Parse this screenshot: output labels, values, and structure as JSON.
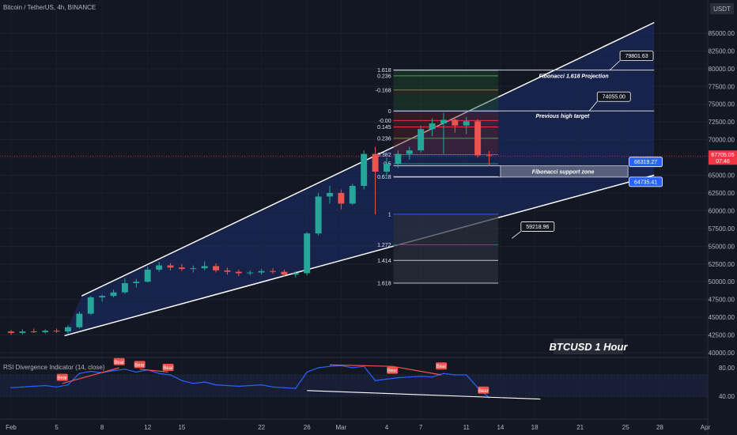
{
  "header": {
    "symbol_title": "Bitcoin / TetherUS, 4h, BINANCE",
    "currency": "USDT"
  },
  "colors": {
    "background": "#131722",
    "bull": "#26a69a",
    "bear": "#ef5350",
    "channel_fill": "#1c2e6b",
    "rsi_line": "#2962ff",
    "current_price": "#f23645",
    "callout_blue": "#2962ff"
  },
  "chart_data": [
    {
      "type": "candlestick",
      "title": "Bitcoin / TetherUS, 4h, BINANCE",
      "interval": "4h",
      "ylim": [
        40000,
        87000
      ],
      "y_ticks": [
        40000,
        42500,
        45000,
        47500,
        50000,
        52500,
        55000,
        57500,
        60000,
        62500,
        65000,
        67500,
        70000,
        72500,
        75000,
        77500,
        80000,
        82500,
        85000
      ],
      "y_tick_labels": [
        "40000.00",
        "42500.00",
        "45000.00",
        "47500.00",
        "50000.00",
        "52500.00",
        "55000.00",
        "57500.00",
        "60000.00",
        "62500.00",
        "65000.00",
        "67500.00",
        "70000.00",
        "72500.00",
        "75000.00",
        "77500.00",
        "80000.00",
        "82500.00",
        "85000.00"
      ],
      "x_range_days": [
        0,
        61
      ],
      "x_ticks": [
        0,
        4,
        8,
        12,
        15,
        19,
        22,
        26,
        29,
        33,
        36,
        40,
        43,
        46,
        50,
        54,
        57,
        61
      ],
      "x_tick_labels": [
        "Feb",
        "5",
        "8",
        "12",
        "15",
        "",
        "22",
        "26",
        "Mar",
        "4",
        "7",
        "11",
        "14",
        "18",
        "21",
        "25",
        "28",
        "Apr"
      ],
      "current_price": "67705.05",
      "current_countdown": "07:46",
      "fib_levels": [
        {
          "label": "1.618",
          "price": 79800
        },
        {
          "label": "0.236",
          "price": 79000
        },
        {
          "label": "-0.168",
          "price": 77000
        },
        {
          "label": "0",
          "price": 74000
        },
        {
          "label": "-0.00",
          "price": 72700
        },
        {
          "label": "0.145",
          "price": 71800
        },
        {
          "label": "0.236",
          "price": 70200
        },
        {
          "label": "0.382",
          "price": 67900
        },
        {
          "label": "0.5",
          "price": 66600
        },
        {
          "label": "0.618",
          "price": 64800
        },
        {
          "label": "1",
          "price": 59500
        },
        {
          "label": "1.272",
          "price": 55200
        },
        {
          "label": "1.414",
          "price": 53000
        },
        {
          "label": "1.618",
          "price": 49800
        }
      ],
      "price_callouts": [
        {
          "text": "79801.63",
          "price": 79801.63
        },
        {
          "text": "74055.00",
          "price": 74055.0
        },
        {
          "text": "66319.27",
          "price": 66319.27
        },
        {
          "text": "64735.41",
          "price": 64735.41
        },
        {
          "text": "59218.96",
          "price": 59218.96
        }
      ],
      "annotations": [
        "Fibonacci 1.618 Projection",
        "Previous high target",
        "Fibonacci support zone",
        "BTCUSD 1 Hour"
      ],
      "channel": {
        "upper": {
          "from": [
            6.2,
            48000
          ],
          "to": [
            56.5,
            86500
          ]
        },
        "lower": {
          "from": [
            4.7,
            42400
          ],
          "to": [
            56.5,
            65000
          ]
        }
      },
      "ohlc": [
        [
          0,
          43000,
          43200,
          42500,
          42800
        ],
        [
          1,
          42800,
          43300,
          42600,
          43000
        ],
        [
          2,
          43000,
          43400,
          42800,
          42900
        ],
        [
          3,
          42900,
          43300,
          42700,
          43100
        ],
        [
          4,
          43100,
          43400,
          42800,
          43000
        ],
        [
          5,
          43000,
          43900,
          42700,
          43600
        ],
        [
          6,
          43600,
          45800,
          43400,
          45500
        ],
        [
          7,
          45500,
          48000,
          45300,
          47800
        ],
        [
          8,
          47800,
          48200,
          47200,
          48000
        ],
        [
          9,
          48000,
          48900,
          47800,
          48500
        ],
        [
          10,
          48500,
          50500,
          48300,
          49800
        ],
        [
          11,
          49800,
          50400,
          49200,
          50000
        ],
        [
          12,
          50000,
          52100,
          49900,
          51700
        ],
        [
          13,
          51700,
          52800,
          51400,
          52300
        ],
        [
          14,
          52300,
          52600,
          51600,
          52000
        ],
        [
          15,
          52000,
          52500,
          51500,
          51800
        ],
        [
          16,
          51800,
          52300,
          51300,
          51900
        ],
        [
          17,
          51900,
          52900,
          51600,
          52200
        ],
        [
          18,
          52200,
          52600,
          51300,
          51600
        ],
        [
          19,
          51600,
          52000,
          51000,
          51400
        ],
        [
          20,
          51400,
          51700,
          50800,
          51200
        ],
        [
          21,
          51200,
          51600,
          50900,
          51300
        ],
        [
          22,
          51300,
          51800,
          51000,
          51500
        ],
        [
          23,
          51500,
          51900,
          51100,
          51400
        ],
        [
          24,
          51400,
          51700,
          50700,
          51000
        ],
        [
          25,
          51000,
          51500,
          50600,
          51200
        ],
        [
          26,
          51200,
          57000,
          50900,
          56800
        ],
        [
          27,
          56800,
          62500,
          56500,
          62000
        ],
        [
          28,
          62000,
          63500,
          61000,
          62500
        ],
        [
          29,
          62500,
          63000,
          60200,
          61000
        ],
        [
          30,
          61000,
          63800,
          60800,
          63500
        ],
        [
          31,
          63500,
          68500,
          63000,
          68000
        ],
        [
          32,
          68000,
          69000,
          59500,
          65500
        ],
        [
          33,
          65500,
          67500,
          64500,
          66600
        ],
        [
          34,
          66600,
          68500,
          66000,
          68000
        ],
        [
          35,
          68000,
          69000,
          67200,
          68500
        ],
        [
          36,
          68500,
          72000,
          68200,
          71500
        ],
        [
          37,
          71500,
          73000,
          70500,
          72300
        ],
        [
          38,
          72300,
          73800,
          68000,
          72800
        ],
        [
          39,
          72800,
          73200,
          71000,
          72000
        ],
        [
          40,
          72000,
          73200,
          70800,
          72600
        ],
        [
          41,
          72600,
          72900,
          67500,
          67800
        ],
        [
          42,
          67800,
          68400,
          66300,
          67700
        ]
      ]
    },
    {
      "type": "line",
      "title": "RSI Divergence Indicator (14, close)",
      "ylim": [
        30,
        90
      ],
      "y_tick_labels": [
        "80.00",
        "40.00"
      ],
      "band": [
        40,
        70
      ],
      "x": [
        0,
        1,
        2,
        3,
        4,
        5,
        6,
        7,
        8,
        9,
        10,
        11,
        12,
        13,
        14,
        15,
        16,
        17,
        18,
        19,
        20,
        21,
        22,
        23,
        24,
        25,
        26,
        27,
        28,
        29,
        30,
        31,
        32,
        33,
        34,
        35,
        36,
        37,
        38,
        39,
        40,
        41,
        42
      ],
      "values": [
        52,
        53,
        54,
        55,
        53,
        56,
        72,
        75,
        73,
        76,
        78,
        74,
        77,
        72,
        70,
        62,
        58,
        60,
        56,
        55,
        54,
        55,
        56,
        53,
        52,
        51,
        74,
        80,
        82,
        83,
        80,
        82,
        62,
        64,
        66,
        67,
        68,
        67,
        72,
        70,
        70,
        52,
        38
      ],
      "signals": [
        {
          "label": "Bear",
          "x": 4.5
        },
        {
          "label": "Bear",
          "x": 9.5
        },
        {
          "label": "Bear",
          "x": 11.3
        },
        {
          "label": "Bear",
          "x": 13.8
        },
        {
          "label": "Bear",
          "x": 33.5
        },
        {
          "label": "Bear",
          "x": 37.8
        },
        {
          "label": "Bear",
          "x": 41.5
        }
      ]
    }
  ]
}
